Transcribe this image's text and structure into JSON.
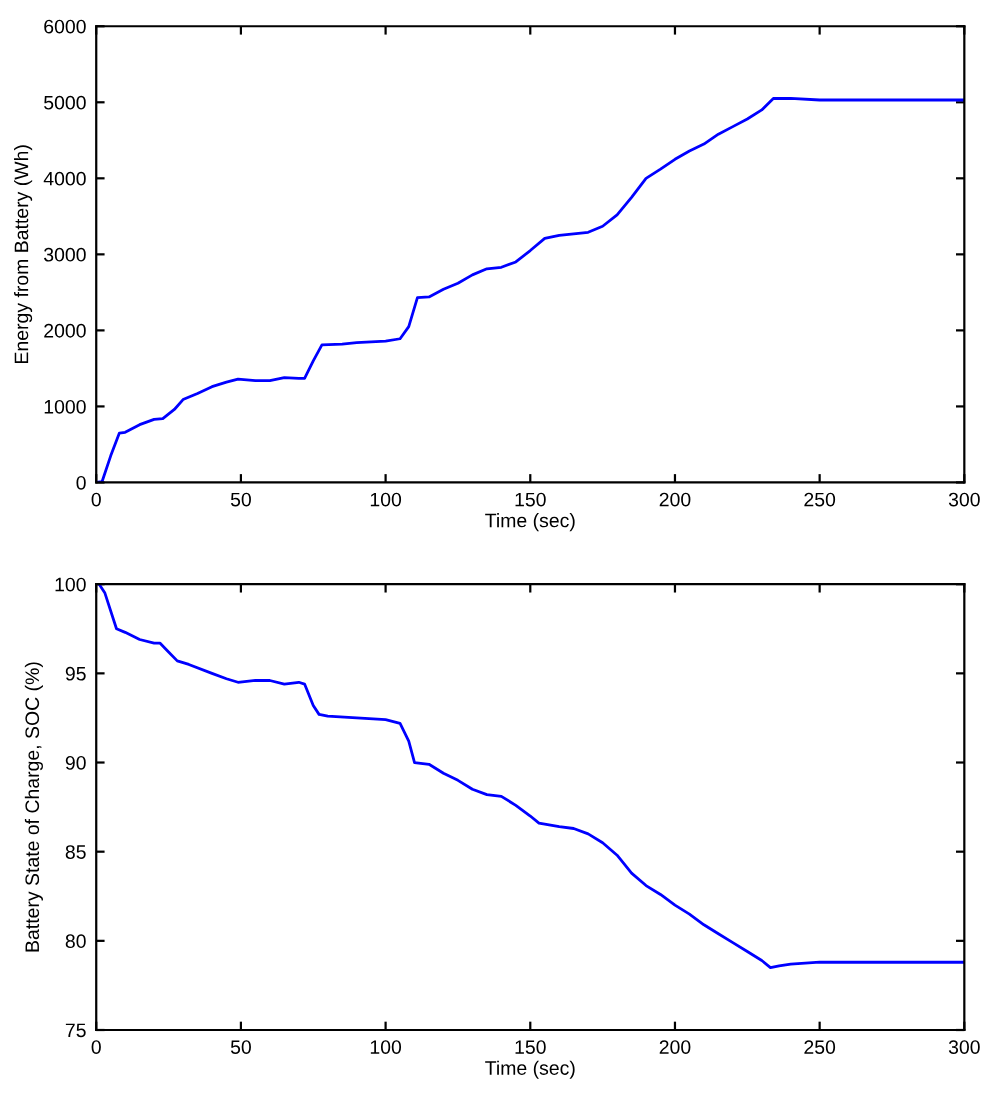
{
  "chart_data": [
    {
      "type": "line",
      "xlabel": "Time (sec)",
      "ylabel": "Energy from Battery (Wh)",
      "xlim": [
        0,
        300
      ],
      "ylim": [
        0,
        6000
      ],
      "xticks": [
        0,
        50,
        100,
        150,
        200,
        250,
        300
      ],
      "yticks": [
        0,
        1000,
        2000,
        3000,
        4000,
        5000,
        6000
      ],
      "grid": false,
      "legend": false,
      "series": [
        {
          "color": "#0000ff",
          "x": [
            0,
            2,
            5,
            8,
            10,
            15,
            20,
            23,
            27,
            30,
            35,
            40,
            45,
            49,
            55,
            60,
            65,
            70,
            72,
            75,
            78,
            85,
            90,
            100,
            105,
            108,
            111,
            115,
            120,
            125,
            130,
            135,
            140,
            145,
            150,
            155,
            160,
            170,
            175,
            180,
            185,
            190,
            195,
            200,
            205,
            210,
            215,
            220,
            225,
            230,
            234,
            240,
            250,
            300
          ],
          "values": [
            0,
            10,
            350,
            650,
            660,
            760,
            830,
            840,
            960,
            1090,
            1170,
            1260,
            1320,
            1360,
            1340,
            1340,
            1380,
            1370,
            1370,
            1600,
            1810,
            1820,
            1840,
            1860,
            1890,
            2050,
            2430,
            2440,
            2540,
            2620,
            2730,
            2810,
            2830,
            2900,
            3050,
            3210,
            3250,
            3290,
            3370,
            3520,
            3750,
            4000,
            4120,
            4250,
            4360,
            4450,
            4580,
            4680,
            4780,
            4900,
            5050,
            5050,
            5030,
            5030
          ]
        }
      ]
    },
    {
      "type": "line",
      "xlabel": "Time (sec)",
      "ylabel": "Battery State of Charge, SOC (%)",
      "xlim": [
        0,
        300
      ],
      "ylim": [
        75,
        100
      ],
      "xticks": [
        0,
        50,
        100,
        150,
        200,
        250,
        300
      ],
      "yticks": [
        75,
        80,
        85,
        90,
        95,
        100
      ],
      "grid": false,
      "legend": false,
      "series": [
        {
          "color": "#0000ff",
          "x": [
            1,
            3,
            7,
            10,
            15,
            20,
            22,
            25,
            28,
            32,
            40,
            45,
            49,
            55,
            60,
            65,
            70,
            72,
            75,
            77,
            80,
            90,
            100,
            105,
            108,
            110,
            115,
            120,
            125,
            130,
            135,
            140,
            145,
            150,
            153,
            160,
            165,
            170,
            175,
            180,
            185,
            190,
            195,
            200,
            205,
            210,
            215,
            220,
            225,
            230,
            233,
            236,
            240,
            250,
            300
          ],
          "values": [
            100,
            99.5,
            97.5,
            97.3,
            96.9,
            96.7,
            96.7,
            96.2,
            95.7,
            95.5,
            95.0,
            94.7,
            94.5,
            94.6,
            94.6,
            94.4,
            94.5,
            94.4,
            93.2,
            92.7,
            92.6,
            92.5,
            92.4,
            92.2,
            91.2,
            90.0,
            89.9,
            89.4,
            89.0,
            88.5,
            88.2,
            88.1,
            87.6,
            87.0,
            86.6,
            86.4,
            86.3,
            86.0,
            85.5,
            84.8,
            83.8,
            83.1,
            82.6,
            82.0,
            81.5,
            80.9,
            80.4,
            79.9,
            79.4,
            78.9,
            78.5,
            78.6,
            78.7,
            78.8,
            78.8
          ]
        }
      ]
    }
  ]
}
